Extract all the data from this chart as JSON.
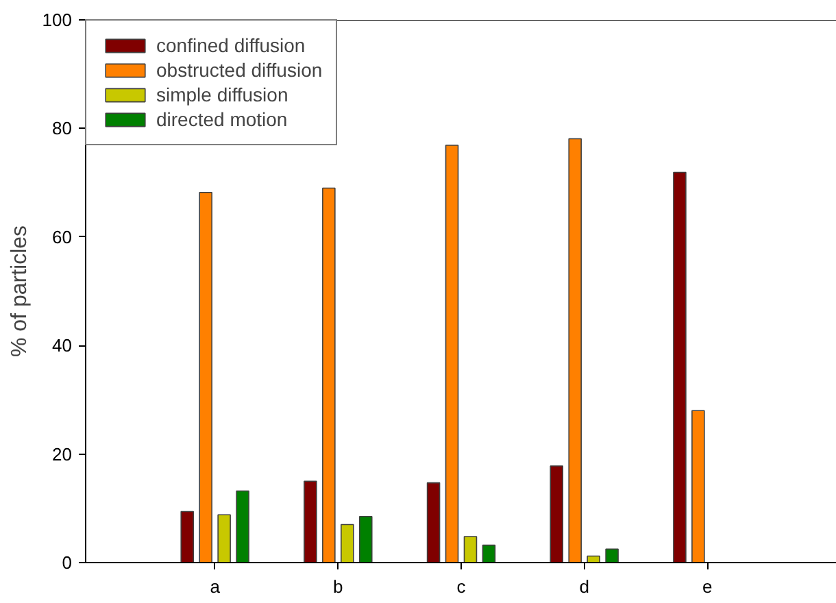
{
  "chart_data": {
    "type": "bar",
    "ylabel": "% of particles",
    "categories": [
      "a",
      "b",
      "c",
      "d",
      "e"
    ],
    "series": [
      {
        "name": "confined diffusion",
        "color": "#800000",
        "values": [
          9.4,
          15.0,
          14.7,
          17.8,
          71.9
        ]
      },
      {
        "name": "obstructed diffusion",
        "color": "#ff8000",
        "values": [
          68.2,
          69.0,
          76.9,
          78.1,
          28.0
        ]
      },
      {
        "name": "simple diffusion",
        "color": "#c8c800",
        "values": [
          8.8,
          7.0,
          4.8,
          1.2,
          null
        ]
      },
      {
        "name": "directed motion",
        "color": "#008000",
        "values": [
          13.2,
          8.5,
          3.2,
          2.5,
          null
        ]
      }
    ],
    "ylim": [
      0,
      100
    ],
    "yticks": [
      0,
      20,
      40,
      60,
      80,
      100
    ],
    "grid": false,
    "legend": "top left"
  }
}
